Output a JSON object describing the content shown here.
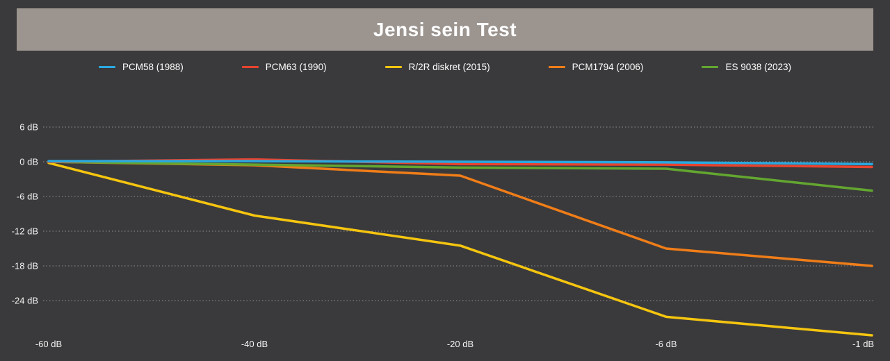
{
  "chart_data": {
    "type": "line",
    "title": "Jensi sein Test",
    "x_categories": [
      "-60 dB",
      "-40 dB",
      "-20 dB",
      "-6 dB",
      "-1 dB"
    ],
    "y_ticks": [
      "6 dB",
      "0 dB",
      "-6 dB",
      "-12 dB",
      "-18 dB",
      "-24 dB"
    ],
    "y_tick_values": [
      6,
      0,
      -6,
      -12,
      -18,
      -24
    ],
    "ylim": [
      -31,
      6
    ],
    "grid": "dotted horizontal",
    "legend_position": "top",
    "series": [
      {
        "name": "PCM58 (1988)",
        "color": "#29a9e0",
        "values": [
          0.1,
          0.1,
          0,
          -0.1,
          -0.4
        ]
      },
      {
        "name": "PCM63 (1990)",
        "color": "#e8432e",
        "values": [
          0,
          0.4,
          -0.4,
          -0.5,
          -0.9
        ]
      },
      {
        "name": "R/2R diskret (2015)",
        "color": "#f5c50f",
        "values": [
          -0.2,
          -9.3,
          -14.5,
          -26.8,
          -30
        ]
      },
      {
        "name": "PCM1794 (2006)",
        "color": "#f07d18",
        "values": [
          0,
          -0.6,
          -2.4,
          -15,
          -18
        ]
      },
      {
        "name": "ES 9038 (2023)",
        "color": "#63a630",
        "values": [
          0,
          -0.5,
          -1,
          -1.2,
          -5
        ]
      }
    ],
    "draw_order": [
      2,
      3,
      4,
      1,
      0
    ],
    "colors": {
      "background": "#3a3a3c",
      "title_bar": "#9b948f",
      "text": "#ffffff",
      "grid": "rgba(255,255,255,0.45)"
    }
  }
}
